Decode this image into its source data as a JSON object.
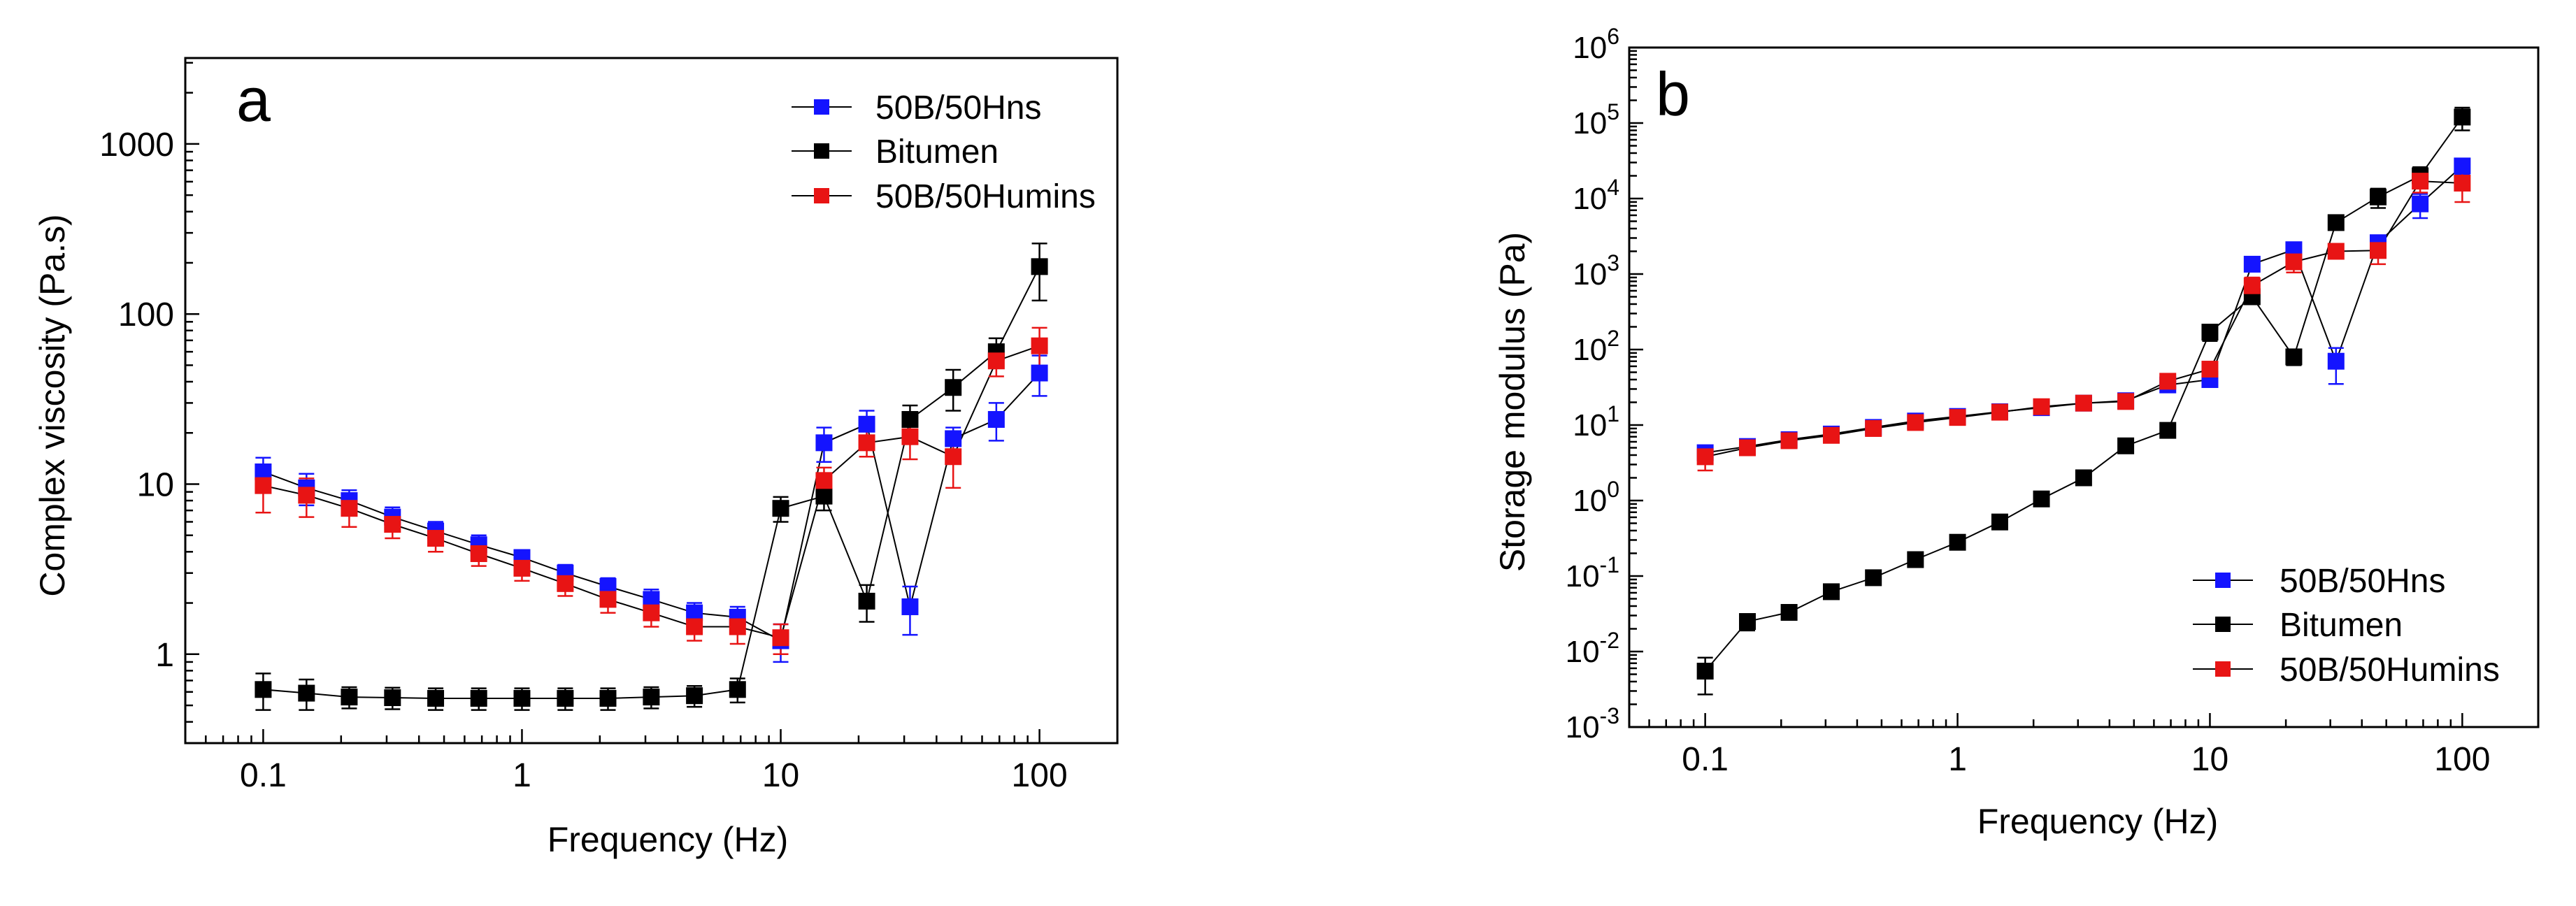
{
  "chart_data": [
    {
      "type": "scatter",
      "panel_label": "a",
      "title": "",
      "xlabel": "Frequency (Hz)",
      "ylabel": "Complex viscosity (Pa.s)",
      "x_scale": "log",
      "y_scale": "log",
      "xlim": [
        0.05,
        200
      ],
      "ylim": [
        0.3,
        3200
      ],
      "x_ticks": [
        0.1,
        1,
        10,
        100
      ],
      "x_tick_labels": [
        "0.1",
        "1",
        "10",
        "100"
      ],
      "y_ticks": [
        1,
        10,
        100,
        1000
      ],
      "y_tick_labels": [
        "1",
        "10",
        "100",
        "1000"
      ],
      "grid": false,
      "legend_position": "top-right",
      "x": [
        0.1,
        0.147,
        0.215,
        0.316,
        0.464,
        0.681,
        1,
        1.47,
        2.15,
        3.16,
        4.64,
        6.81,
        10,
        14.7,
        21.5,
        31.6,
        46.4,
        68.1,
        100
      ],
      "series": [
        {
          "name": "50B/50Hns",
          "color": "#1414ff",
          "values": [
            11.8,
            9.5,
            8.0,
            6.4,
            5.3,
            4.4,
            3.7,
            3.0,
            2.5,
            2.1,
            1.75,
            1.65,
            1.2,
            17.5,
            22.5,
            1.9,
            18.5,
            24.0,
            45.0
          ],
          "errors": [
            2.5,
            2.0,
            1.2,
            0.9,
            0.7,
            0.6,
            0.4,
            0.35,
            0.3,
            0.3,
            0.25,
            0.25,
            0.3,
            4.0,
            4.5,
            0.6,
            3.0,
            6.0,
            12.0
          ]
        },
        {
          "name": "Bitumen",
          "color": "#000000",
          "values": [
            0.62,
            0.59,
            0.56,
            0.555,
            0.55,
            0.55,
            0.55,
            0.55,
            0.55,
            0.56,
            0.57,
            0.62,
            7.2,
            8.5,
            2.05,
            24.0,
            37.0,
            60.0,
            190.0
          ],
          "errors": [
            0.15,
            0.12,
            0.08,
            0.08,
            0.08,
            0.08,
            0.08,
            0.08,
            0.08,
            0.08,
            0.08,
            0.1,
            1.2,
            1.5,
            0.5,
            5.0,
            10.0,
            12.0,
            70.0
          ]
        },
        {
          "name": "50B/50Humins",
          "color": "#e81414",
          "values": [
            9.8,
            8.6,
            7.2,
            5.8,
            4.8,
            3.9,
            3.2,
            2.6,
            2.1,
            1.75,
            1.45,
            1.45,
            1.25,
            10.5,
            17.5,
            19.0,
            14.5,
            53.0,
            65.0
          ],
          "errors": [
            3.0,
            2.2,
            1.6,
            1.0,
            0.8,
            0.6,
            0.5,
            0.4,
            0.35,
            0.3,
            0.25,
            0.3,
            0.25,
            2.0,
            3.0,
            5.0,
            5.0,
            10.0,
            18.0
          ]
        }
      ]
    },
    {
      "type": "scatter",
      "panel_label": "b",
      "title": "",
      "xlabel": "Frequency (Hz)",
      "ylabel": "Storage modulus (Pa)",
      "x_scale": "log",
      "y_scale": "log",
      "xlim": [
        0.05,
        200
      ],
      "ylim": [
        0.001,
        1000000
      ],
      "x_ticks": [
        0.1,
        1,
        10,
        100
      ],
      "x_tick_labels": [
        "0.1",
        "1",
        "10",
        "100"
      ],
      "y_ticks": [
        0.001,
        0.01,
        0.1,
        1,
        10,
        100,
        1000,
        10000,
        100000,
        1000000
      ],
      "y_tick_base": "10",
      "y_tick_exponents": [
        "-3",
        "-2",
        "-1",
        "0",
        "1",
        "2",
        "3",
        "4",
        "5",
        "6"
      ],
      "grid": false,
      "legend_position": "bottom-right",
      "x": [
        0.1,
        0.147,
        0.215,
        0.316,
        0.464,
        0.681,
        1,
        1.47,
        2.15,
        3.16,
        4.64,
        6.81,
        10,
        14.7,
        21.5,
        31.6,
        46.4,
        68.1,
        100
      ],
      "series": [
        {
          "name": "50B/50Hns",
          "color": "#1414ff",
          "values": [
            4.3,
            5.2,
            6.4,
            7.6,
            9.3,
            11.3,
            13.0,
            15.0,
            17.0,
            19.5,
            21.0,
            34.0,
            40.0,
            1350,
            2100,
            70,
            2600,
            8500,
            27000
          ],
          "errors": [
            0.8,
            0.8,
            0.8,
            0.9,
            1.0,
            1.2,
            1.3,
            1.5,
            1.6,
            1.8,
            2.0,
            4.0,
            6.0,
            200,
            300,
            35,
            600,
            3000,
            6000
          ]
        },
        {
          "name": "Bitumen",
          "color": "#000000",
          "values": [
            0.0055,
            0.025,
            0.033,
            0.062,
            0.095,
            0.165,
            0.28,
            0.52,
            1.05,
            2.0,
            5.3,
            8.5,
            170,
            500,
            80,
            4800,
            10500,
            20000,
            120000
          ],
          "errors": [
            0.0028,
            0.006,
            0.004,
            0.006,
            0.009,
            0.015,
            0.025,
            0.05,
            0.1,
            0.2,
            0.5,
            0.8,
            40,
            100,
            18,
            800,
            3000,
            6000,
            40000
          ]
        },
        {
          "name": "50B/50Humins",
          "color": "#e81414",
          "values": [
            3.8,
            5.0,
            6.2,
            7.3,
            9.0,
            10.8,
            12.6,
            14.8,
            17.5,
            19.5,
            20.5,
            38.0,
            55.0,
            700,
            1450,
            2000,
            2050,
            17000,
            16000
          ],
          "errors": [
            1.3,
            0.8,
            0.9,
            0.9,
            1.0,
            1.1,
            1.2,
            1.5,
            1.6,
            1.8,
            2.0,
            5.0,
            10.0,
            200,
            400,
            300,
            700,
            5000,
            7000
          ]
        }
      ]
    }
  ]
}
